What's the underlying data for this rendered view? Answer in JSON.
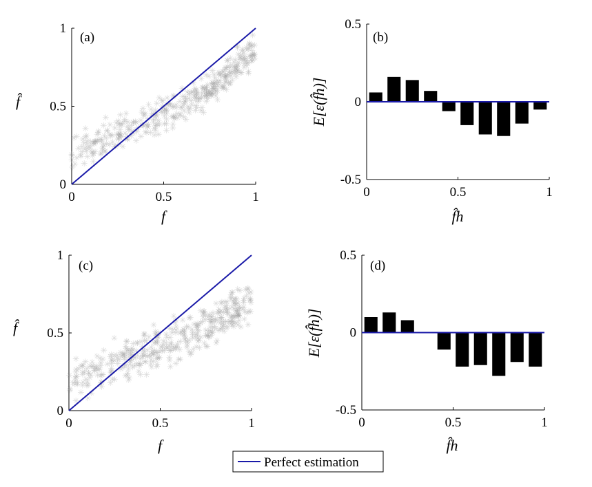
{
  "legend": {
    "label": "Perfect estimation",
    "color": "#1a1aa8"
  },
  "colors": {
    "scatter": "#9a9a9a",
    "bars": "#000000",
    "axes": "#000000",
    "line": "#1a1aa8"
  },
  "chart_data": [
    {
      "type": "scatter",
      "panel_label": "(a)",
      "xlabel": "f",
      "ylabel": "f̂",
      "xlim": [
        0,
        1
      ],
      "ylim": [
        0,
        1
      ],
      "xticks": [
        "0",
        "0.5",
        "1"
      ],
      "yticks": [
        "0",
        "0.5",
        "1"
      ],
      "reference_line": {
        "name": "Perfect estimation",
        "x": [
          0,
          1
        ],
        "y": [
          0,
          1
        ]
      },
      "scatter_trend": {
        "x": [
          0.0,
          0.05,
          0.1,
          0.15,
          0.2,
          0.25,
          0.3,
          0.35,
          0.4,
          0.45,
          0.5,
          0.55,
          0.6,
          0.65,
          0.7,
          0.75,
          0.8,
          0.85,
          0.9,
          0.95,
          1.0
        ],
        "y": [
          0.2,
          0.22,
          0.26,
          0.29,
          0.31,
          0.33,
          0.35,
          0.37,
          0.39,
          0.42,
          0.45,
          0.48,
          0.5,
          0.53,
          0.57,
          0.6,
          0.64,
          0.7,
          0.76,
          0.82,
          0.86
        ]
      },
      "scatter_count": 400,
      "scatter_spread": 0.06
    },
    {
      "type": "bar",
      "panel_label": "(b)",
      "xlabel": "f̂h",
      "ylabel": "E[ε(f̂h)]",
      "xlim": [
        0,
        1
      ],
      "ylim": [
        -0.5,
        0.5
      ],
      "xticks": [
        "0",
        "0.5",
        "1"
      ],
      "yticks": [
        "-0.5",
        "0",
        "0.5"
      ],
      "x": [
        0.05,
        0.15,
        0.25,
        0.35,
        0.45,
        0.55,
        0.65,
        0.75,
        0.85,
        0.95
      ],
      "values": [
        0.06,
        0.16,
        0.14,
        0.07,
        -0.06,
        -0.15,
        -0.21,
        -0.22,
        -0.14,
        -0.05
      ]
    },
    {
      "type": "scatter",
      "panel_label": "(c)",
      "xlabel": "f",
      "ylabel": "f̂",
      "xlim": [
        0,
        1
      ],
      "ylim": [
        0,
        1
      ],
      "xticks": [
        "0",
        "0.5",
        "1"
      ],
      "yticks": [
        "0",
        "0.5",
        "1"
      ],
      "reference_line": {
        "name": "Perfect estimation",
        "x": [
          0,
          1
        ],
        "y": [
          0,
          1
        ]
      },
      "scatter_trend": {
        "x": [
          0.0,
          0.05,
          0.1,
          0.15,
          0.2,
          0.25,
          0.3,
          0.35,
          0.4,
          0.45,
          0.5,
          0.55,
          0.6,
          0.65,
          0.7,
          0.75,
          0.8,
          0.85,
          0.9,
          0.95,
          1.0
        ],
        "y": [
          0.2,
          0.22,
          0.24,
          0.26,
          0.28,
          0.3,
          0.32,
          0.34,
          0.36,
          0.38,
          0.4,
          0.42,
          0.45,
          0.48,
          0.5,
          0.53,
          0.56,
          0.6,
          0.63,
          0.66,
          0.68
        ]
      },
      "scatter_count": 420,
      "scatter_spread": 0.08
    },
    {
      "type": "bar",
      "panel_label": "(d)",
      "xlabel": "f̂h",
      "ylabel": "E[ε(f̂h)]",
      "xlim": [
        0,
        1
      ],
      "ylim": [
        -0.5,
        0.5
      ],
      "xticks": [
        "0",
        "0.5",
        "1"
      ],
      "yticks": [
        "-0.5",
        "0",
        "0.5"
      ],
      "x": [
        0.05,
        0.15,
        0.25,
        0.35,
        0.45,
        0.55,
        0.65,
        0.75,
        0.85,
        0.95
      ],
      "values": [
        0.1,
        0.13,
        0.08,
        0.0,
        -0.11,
        -0.22,
        -0.21,
        -0.28,
        -0.19,
        -0.22
      ]
    }
  ]
}
